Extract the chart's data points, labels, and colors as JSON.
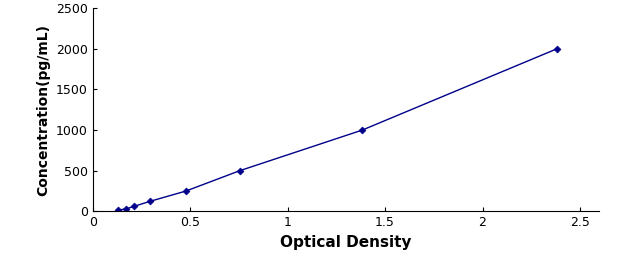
{
  "x": [
    0.131,
    0.172,
    0.213,
    0.296,
    0.478,
    0.754,
    1.383,
    2.382
  ],
  "y": [
    15.6,
    31.25,
    62.5,
    125,
    250,
    500,
    1000,
    2000
  ],
  "line_color": "#00008B",
  "marker": "D",
  "marker_size": 3.5,
  "marker_color": "#00008B",
  "xlabel": "Optical Density",
  "ylabel": "Concentration(pg/mL)",
  "xlim": [
    0.0,
    2.6
  ],
  "ylim": [
    0,
    2500
  ],
  "xticks": [
    0,
    0.5,
    1,
    1.5,
    2,
    2.5
  ],
  "yticks": [
    0,
    500,
    1000,
    1500,
    2000,
    2500
  ],
  "xlabel_fontsize": 11,
  "ylabel_fontsize": 10,
  "tick_fontsize": 9,
  "linewidth": 1.0
}
